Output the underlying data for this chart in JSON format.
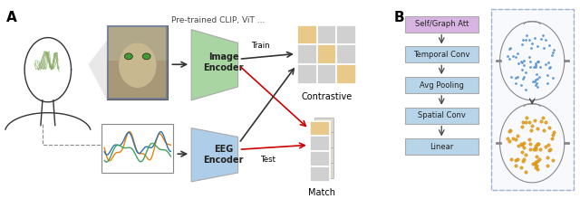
{
  "fig_width": 6.4,
  "fig_height": 2.2,
  "dpi": 100,
  "bg_color": "#ffffff",
  "panel_a_label": "A",
  "panel_b_label": "B",
  "pretrained_text": "Pre-trained CLIP, ViT ...",
  "image_encoder_text": "Image\nEncoder",
  "eeg_encoder_text": "EEG\nEncoder",
  "train_text": "Train",
  "test_text": "Test",
  "contrastive_text": "Contrastive",
  "match_text": "Match",
  "flowbox_labels": [
    "Self/Graph Att",
    "Temporal Conv",
    "Avg Pooling",
    "Spatial Conv",
    "Linear"
  ],
  "green_encoder_color": "#a8d5a2",
  "blue_encoder_color": "#aecde8",
  "purple_box_color": "#d8b4e2",
  "light_blue_box_color": "#b8d4e8",
  "matrix_tan_color": "#e8c98a",
  "matrix_gray_color": "#d0d0d0",
  "eeg_orange": "#e8820c",
  "eeg_blue": "#3070b0",
  "eeg_green": "#40a060",
  "dot_blue": "#5090d0",
  "dot_orange": "#e8a020",
  "arrow_red": "#cc0000",
  "arrow_black": "#333333",
  "dashed_box_color": "#a0b0d0"
}
